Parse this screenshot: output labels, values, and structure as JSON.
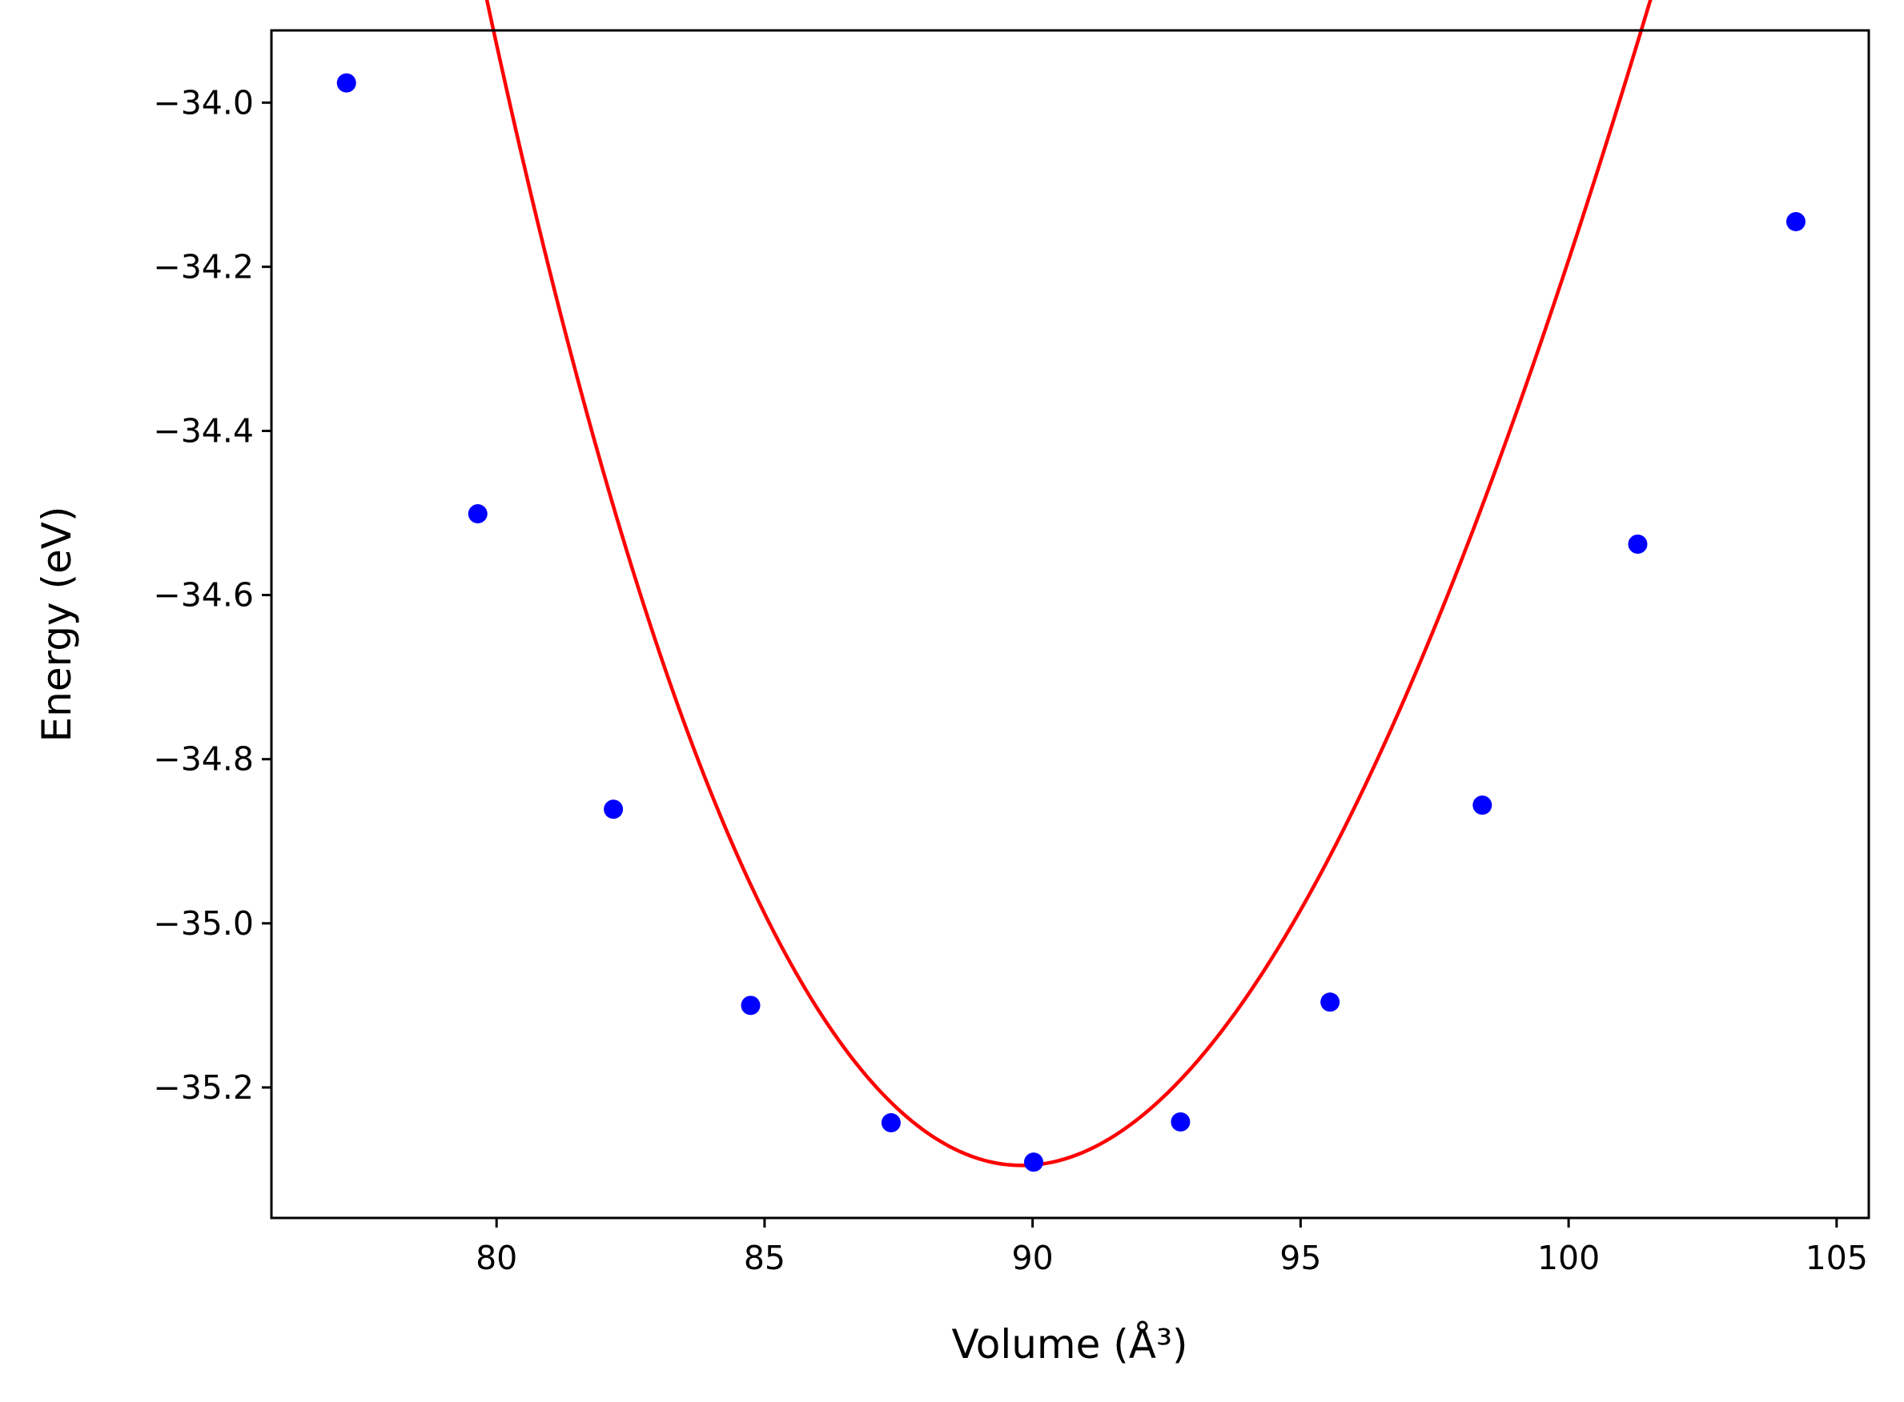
{
  "chart_data": {
    "type": "scatter",
    "xlabel": "Volume (Å³)",
    "ylabel": "Energy (eV)",
    "xlim": [
      75.8,
      105.6
    ],
    "ylim": [
      -35.359,
      -33.912
    ],
    "x_ticks": [
      80,
      85,
      90,
      95,
      100,
      105
    ],
    "x_tick_labels": [
      "80",
      "85",
      "90",
      "95",
      "100",
      "105"
    ],
    "y_ticks": [
      -34.0,
      -34.2,
      -34.4,
      -34.6,
      -34.8,
      -35.0,
      -35.2
    ],
    "y_tick_labels": [
      "−34.0",
      "−34.2",
      "−34.4",
      "−34.6",
      "−34.8",
      "−35.0",
      "−35.2"
    ],
    "grid": false,
    "series": [
      {
        "kind": "points",
        "color": "#0000ff",
        "x": [
          77.2,
          79.65,
          82.18,
          84.74,
          87.36,
          90.02,
          92.76,
          95.55,
          98.39,
          101.29,
          104.24
        ],
        "y": [
          -33.976,
          -34.501,
          -34.861,
          -35.1,
          -35.243,
          -35.291,
          -35.242,
          -35.096,
          -34.856,
          -34.538,
          -34.145
        ]
      },
      {
        "kind": "fit-curve",
        "color": "#ff0000",
        "x_range": [
          77.2,
          104.24
        ],
        "minimum": {
          "x": 89.8,
          "y": -35.295
        },
        "curvature": 0.01245,
        "cubic": -0.000181
      }
    ]
  }
}
